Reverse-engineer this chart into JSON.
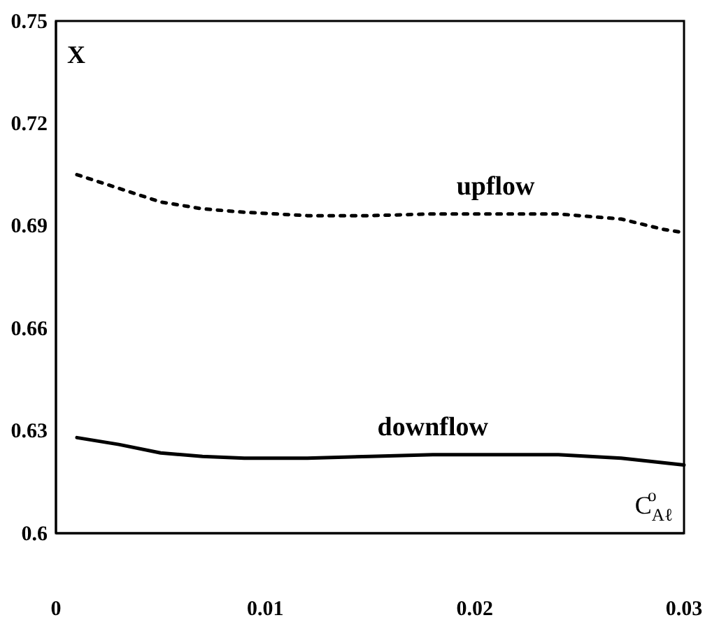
{
  "chart_data": {
    "type": "line",
    "ylabel": "X",
    "xlabel": "C$_{Aℓ}$$^{o}$",
    "xlim": [
      0,
      0.03
    ],
    "xticks": [
      0,
      0.01,
      0.02,
      0.03
    ],
    "ylim": [
      0.6,
      0.75
    ],
    "yticks": [
      0.6,
      0.63,
      0.66,
      0.69,
      0.72,
      0.75
    ],
    "grid": false,
    "legend": false,
    "marker": "none",
    "series": [
      {
        "name": "upflow",
        "color": "#000000",
        "line_style": "dotted",
        "x": [
          0.001,
          0.003,
          0.005,
          0.007,
          0.009,
          0.012,
          0.015,
          0.018,
          0.021,
          0.024,
          0.027,
          0.029,
          0.03
        ],
        "values": [
          0.705,
          0.701,
          0.697,
          0.695,
          0.694,
          0.693,
          0.693,
          0.6935,
          0.6935,
          0.6935,
          0.692,
          0.689,
          0.688
        ]
      },
      {
        "name": "downflow",
        "color": "#000000",
        "line_style": "solid",
        "x": [
          0.001,
          0.003,
          0.005,
          0.007,
          0.009,
          0.012,
          0.015,
          0.018,
          0.021,
          0.024,
          0.027,
          0.03
        ],
        "values": [
          0.628,
          0.626,
          0.6235,
          0.6225,
          0.622,
          0.622,
          0.6225,
          0.623,
          0.623,
          0.623,
          0.622,
          0.62
        ]
      }
    ]
  }
}
